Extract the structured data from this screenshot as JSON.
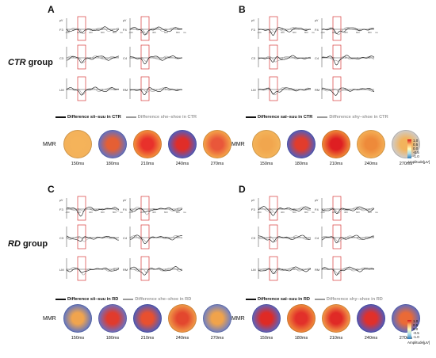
{
  "groups": {
    "ctr": {
      "prefix": "CTR",
      "suffix": " group"
    },
    "rd": {
      "prefix": "RD",
      "suffix": " group"
    }
  },
  "panels": [
    {
      "letter": "A",
      "legend_black": "Difference sii–suu in CTR",
      "legend_gray": "Difference she–shoe in CTR",
      "electrodes_left": [
        "F3",
        "C3",
        "LM"
      ],
      "electrodes_right": [
        "F4",
        "C4",
        "RM"
      ],
      "mmr_label": "MMR",
      "times": [
        "150ms",
        "180ms",
        "210ms",
        "240ms",
        "270ms"
      ]
    },
    {
      "letter": "B",
      "legend_black": "Difference sai–suu in CTR",
      "legend_gray": "Difference shy–shoe in CTR",
      "electrodes_left": [
        "F3",
        "C3",
        "LM"
      ],
      "electrodes_right": [
        "F4",
        "C4",
        "RM"
      ],
      "mmr_label": "MMR",
      "times": [
        "150ms",
        "180ms",
        "210ms",
        "240ms",
        "270ms"
      ]
    },
    {
      "letter": "C",
      "legend_black": "Difference sii–suu in RD",
      "legend_gray": "Difference she–shoe in RD",
      "electrodes_left": [
        "F3",
        "C3",
        "LM"
      ],
      "electrodes_right": [
        "F4",
        "C4",
        "RM"
      ],
      "mmr_label": "MMR",
      "times": [
        "150ms",
        "180ms",
        "210ms",
        "240ms",
        "270ms"
      ]
    },
    {
      "letter": "D",
      "legend_black": "Difference sai–suu in RD",
      "legend_gray": "Difference shy–shoe in RD",
      "electrodes_left": [
        "F3",
        "C3",
        "LM"
      ],
      "electrodes_right": [
        "F4",
        "C4",
        "RM"
      ],
      "mmr_label": "MMR",
      "times": [
        "150ms",
        "180ms",
        "210ms",
        "240ms",
        "270ms"
      ]
    }
  ],
  "axis": {
    "y_label": "µV",
    "x_label": "ms",
    "x_ticks": [
      "-100",
      "200",
      "400",
      "600",
      "800"
    ]
  },
  "colorbar_top": {
    "ticks": [
      "1.0",
      "0.5",
      "0.0",
      "-0.5",
      "-1.0"
    ],
    "title": "Amplitude[µV]"
  },
  "colorbar_bottom": {
    "ticks": [
      "1.0",
      "0.5",
      "0.0",
      "-0.5",
      "-1.0"
    ],
    "title": "Amplitude[µV]"
  },
  "topomaps": {
    "A": [
      {
        "center": "#f5b35a",
        "ring": "#f3b15a",
        "spots": [
          {
            "color": "#b3c5e6"
          }
        ]
      },
      {
        "center": "#e55f34",
        "ring": "#5074d8",
        "spots": []
      },
      {
        "center": "#e8312b",
        "ring": "#f4a040",
        "spots": []
      },
      {
        "center": "#e02d28",
        "ring": "#3f64d4",
        "spots": []
      },
      {
        "center": "#e9573a",
        "ring": "#f6b24c",
        "spots": []
      }
    ],
    "B": [
      {
        "center": "#f1a64e",
        "ring": "#f4b65c",
        "spots": []
      },
      {
        "center": "#e23c2c",
        "ring": "#3d62d2",
        "spots": []
      },
      {
        "center": "#de1f22",
        "ring": "#f29c3b",
        "spots": []
      },
      {
        "center": "#ee8a3a",
        "ring": "#f5b55a",
        "spots": []
      },
      {
        "center": "#f2b35c",
        "ring": "#c9d0dc",
        "spots": []
      }
    ],
    "C": [
      {
        "center": "#f0a44e",
        "ring": "#4d6fd4",
        "spots": []
      },
      {
        "center": "#e13b2d",
        "ring": "#5a79d8",
        "spots": []
      },
      {
        "center": "#e8502f",
        "ring": "#3a5fd0",
        "spots": []
      },
      {
        "center": "#e3472e",
        "ring": "#f2a84c",
        "spots": []
      },
      {
        "center": "#f0a34b",
        "ring": "#5c7ad6",
        "spots": []
      }
    ],
    "D": [
      {
        "center": "#df2a25",
        "ring": "#4a6bd3",
        "spots": []
      },
      {
        "center": "#e2302a",
        "ring": "#f19a3e",
        "spots": []
      },
      {
        "center": "#e02a26",
        "ring": "#f4ad4e",
        "spots": []
      },
      {
        "center": "#e1302a",
        "ring": "#3c60d1",
        "spots": []
      },
      {
        "center": "#ea6a36",
        "ring": "#4c6cd3",
        "spots": []
      }
    ]
  },
  "colors": {
    "black_trace": "#111111",
    "gray_trace": "#9a9a9a",
    "highlight_box": "#d83a3a"
  }
}
